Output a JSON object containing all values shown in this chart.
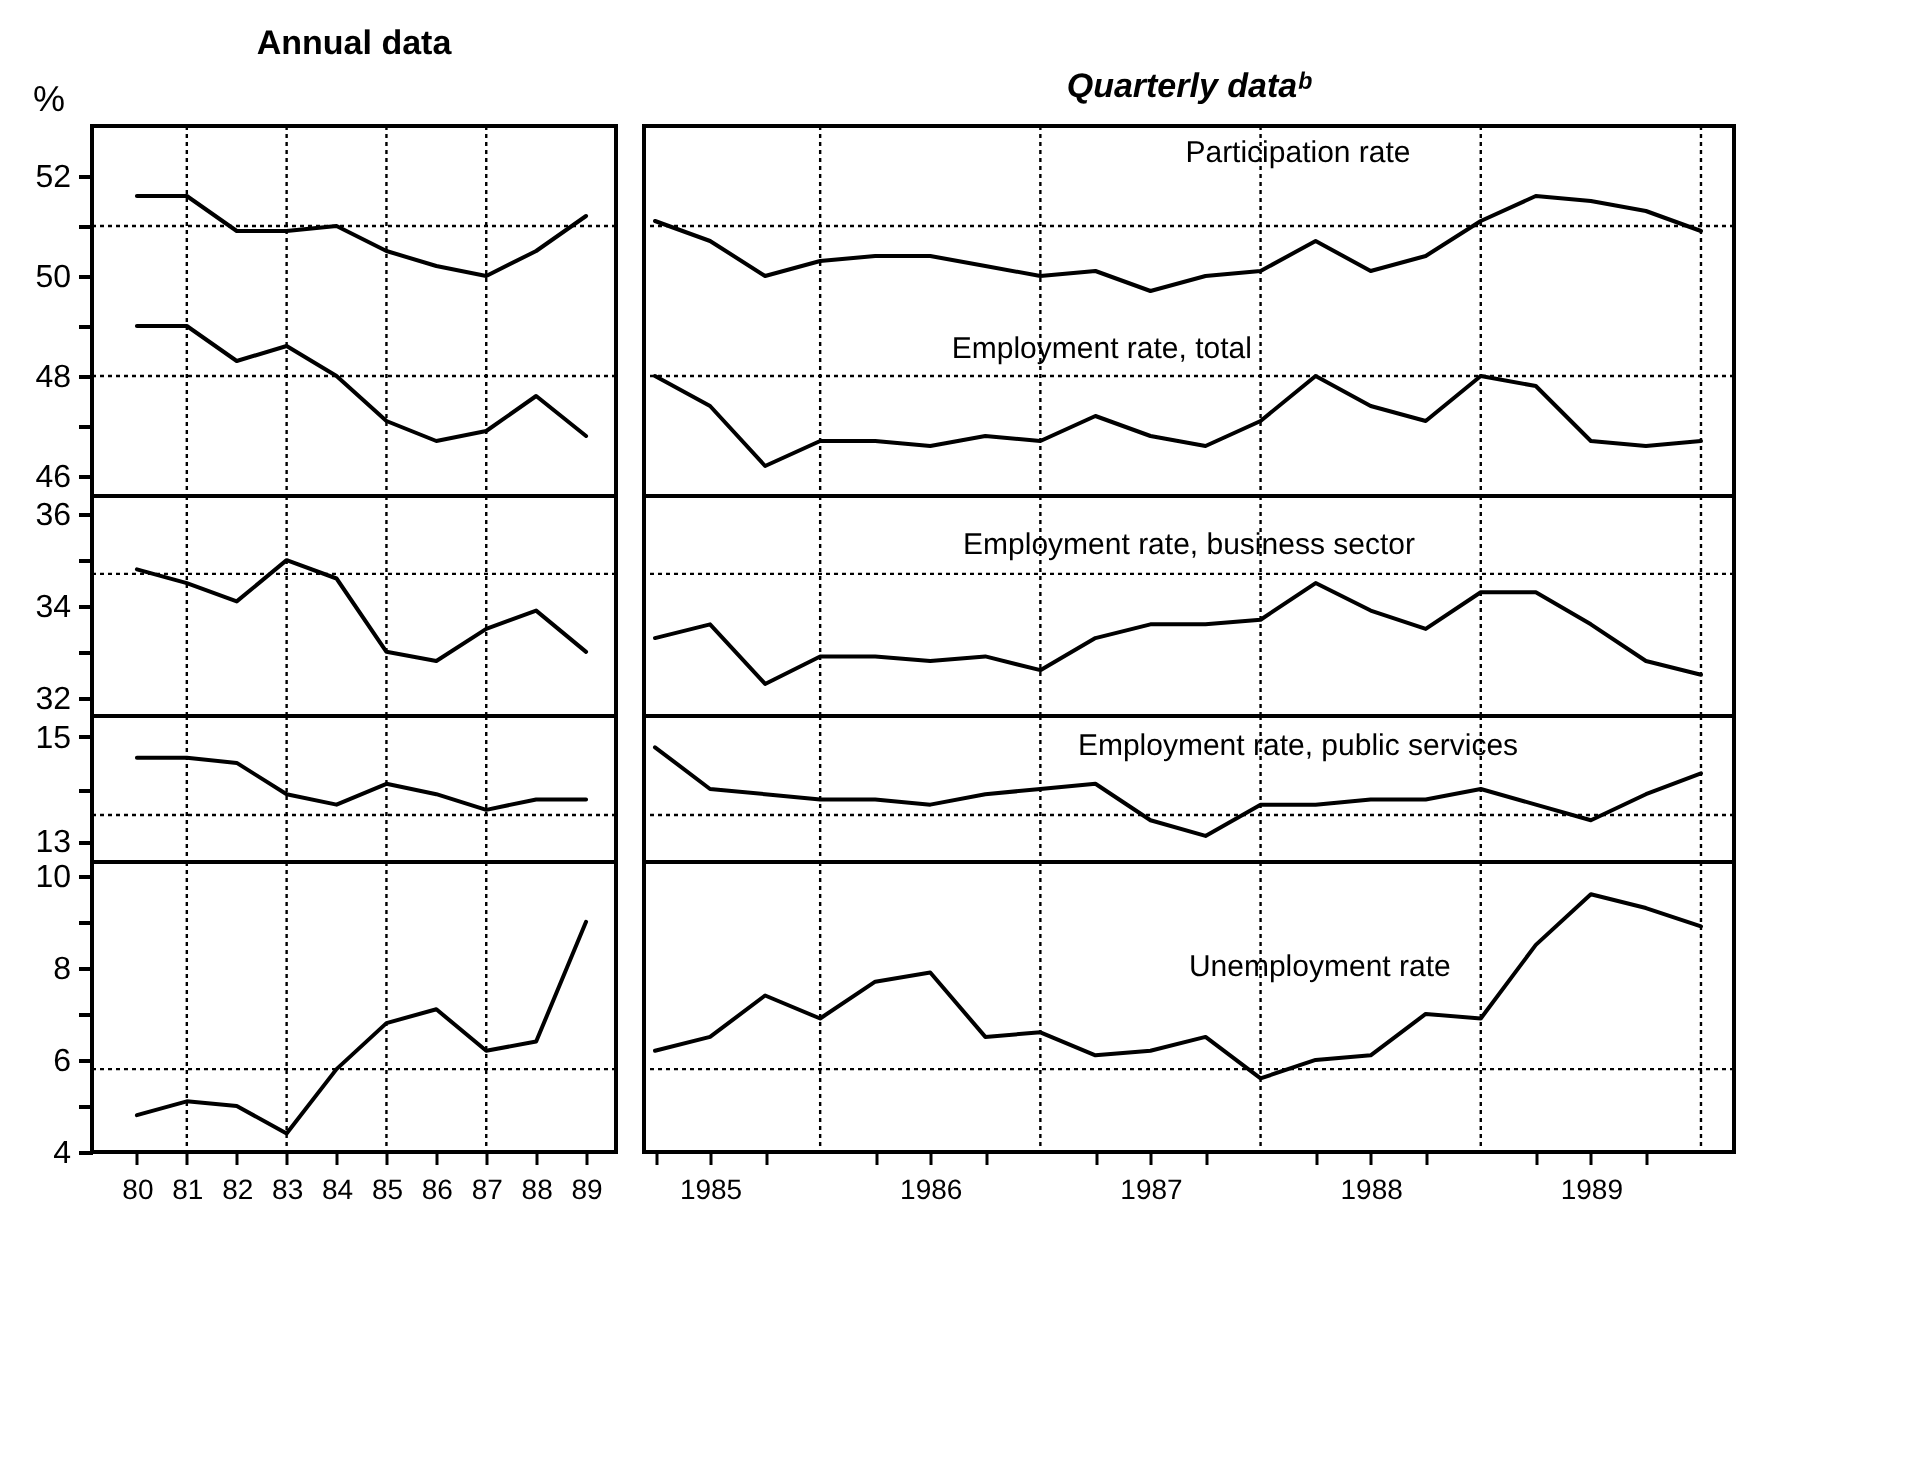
{
  "chart_data": [
    {
      "type": "line",
      "title": "Annual data",
      "ylabel": "%",
      "x": [
        1980,
        1981,
        1982,
        1983,
        1984,
        1985,
        1986,
        1987,
        1988,
        1989
      ],
      "xlim": [
        1979.1,
        1989.6
      ],
      "ylim": [
        45.6,
        53
      ],
      "yticks": [
        46,
        {
          "value": 47,
          "label": null
        },
        48,
        {
          "value": 49,
          "label": null
        },
        50,
        {
          "value": 51,
          "label": null
        },
        52
      ],
      "tick_labels": "y",
      "series": [
        {
          "color": "#000000",
          "values": [
            51.6,
            51.6,
            50.9,
            50.9,
            51.0,
            50.5,
            50.2,
            50.0,
            50.5,
            51.2
          ]
        },
        {
          "color": "#000000",
          "values": [
            49.0,
            49.0,
            48.3,
            48.6,
            48.0,
            47.1,
            46.7,
            46.9,
            47.6,
            46.8
          ]
        }
      ],
      "ref_lines": [
        {
          "axis": "y",
          "value": 51,
          "color": "#000000",
          "line_style": "dotted"
        },
        {
          "axis": "y",
          "value": 48,
          "color": "#000000",
          "line_style": "dotted"
        },
        {
          "axis": "x",
          "value": 1981,
          "color": "#000000",
          "line_style": "dotted"
        },
        {
          "axis": "x",
          "value": 1983,
          "color": "#000000",
          "line_style": "dotted"
        },
        {
          "axis": "x",
          "value": 1985,
          "color": "#000000",
          "line_style": "dotted"
        },
        {
          "axis": "x",
          "value": 1987,
          "color": "#000000",
          "line_style": "dotted"
        }
      ]
    },
    {
      "type": "line",
      "title": "Quarterly dataᵇ",
      "x": [
        1985.25,
        1985.5,
        1985.75,
        1986,
        1986.25,
        1986.5,
        1986.75,
        1987,
        1987.25,
        1987.5,
        1987.75,
        1988,
        1988.25,
        1988.5,
        1988.75,
        1989,
        1989.25,
        1989.5,
        1989.75,
        1990
      ],
      "xlim": [
        1985.2,
        1990.15
      ],
      "ylim": [
        45.6,
        53
      ],
      "tick_labels": false,
      "series": [
        {
          "name": "Participation rate",
          "color": "#000000",
          "values": [
            51.1,
            50.7,
            50.0,
            50.3,
            50.4,
            50.4,
            50.2,
            50.0,
            50.1,
            49.7,
            50.0,
            50.1,
            50.7,
            50.1,
            50.4,
            51.1,
            51.6,
            51.5,
            51.3,
            50.9
          ]
        },
        {
          "name": "Employment rate, total",
          "color": "#000000",
          "values": [
            48.0,
            47.4,
            46.2,
            46.7,
            46.7,
            46.6,
            46.8,
            46.7,
            47.2,
            46.8,
            46.6,
            47.1,
            48.0,
            47.4,
            47.1,
            48.0,
            47.8,
            46.7,
            46.6,
            46.7
          ]
        }
      ],
      "ref_lines": [
        {
          "axis": "y",
          "value": 51,
          "color": "#000000",
          "line_style": "dotted"
        },
        {
          "axis": "y",
          "value": 48,
          "color": "#000000",
          "line_style": "dotted"
        },
        {
          "axis": "x",
          "value": 1986,
          "color": "#000000",
          "line_style": "dotted"
        },
        {
          "axis": "x",
          "value": 1987,
          "color": "#000000",
          "line_style": "dotted"
        },
        {
          "axis": "x",
          "value": 1988,
          "color": "#000000",
          "line_style": "dotted"
        },
        {
          "axis": "x",
          "value": 1989,
          "color": "#000000",
          "line_style": "dotted"
        },
        {
          "axis": "x",
          "value": 1990,
          "color": "#000000",
          "line_style": "dotted"
        }
      ]
    },
    {
      "type": "line",
      "x": [
        1980,
        1981,
        1982,
        1983,
        1984,
        1985,
        1986,
        1987,
        1988,
        1989
      ],
      "xlim": [
        1979.1,
        1989.6
      ],
      "ylim": [
        31.6,
        36.4
      ],
      "yticks": [
        32,
        {
          "value": 33,
          "label": null
        },
        34,
        {
          "value": 35,
          "label": null
        },
        36
      ],
      "tick_labels": "y",
      "series": [
        {
          "color": "#000000",
          "values": [
            34.8,
            34.5,
            34.1,
            35.0,
            34.6,
            33.0,
            32.8,
            33.5,
            33.9,
            33.0
          ]
        }
      ],
      "ref_lines": [
        {
          "axis": "y",
          "value": 34.7,
          "color": "#000000",
          "line_style": "dotted"
        },
        {
          "axis": "x",
          "value": 1981,
          "color": "#000000",
          "line_style": "dotted"
        },
        {
          "axis": "x",
          "value": 1983,
          "color": "#000000",
          "line_style": "dotted"
        },
        {
          "axis": "x",
          "value": 1985,
          "color": "#000000",
          "line_style": "dotted"
        },
        {
          "axis": "x",
          "value": 1987,
          "color": "#000000",
          "line_style": "dotted"
        }
      ]
    },
    {
      "type": "line",
      "x": [
        1985.25,
        1985.5,
        1985.75,
        1986,
        1986.25,
        1986.5,
        1986.75,
        1987,
        1987.25,
        1987.5,
        1987.75,
        1988,
        1988.25,
        1988.5,
        1988.75,
        1989,
        1989.25,
        1989.5,
        1989.75,
        1990
      ],
      "xlim": [
        1985.2,
        1990.15
      ],
      "ylim": [
        31.6,
        36.4
      ],
      "tick_labels": false,
      "series": [
        {
          "name": "Employment rate, business sector",
          "color": "#000000",
          "values": [
            33.3,
            33.6,
            32.3,
            32.9,
            32.9,
            32.8,
            32.9,
            32.6,
            33.3,
            33.6,
            33.6,
            33.7,
            34.5,
            33.9,
            33.5,
            34.3,
            34.3,
            33.6,
            32.8,
            32.5
          ]
        }
      ],
      "ref_lines": [
        {
          "axis": "y",
          "value": 34.7,
          "color": "#000000",
          "line_style": "dotted"
        },
        {
          "axis": "x",
          "value": 1986,
          "color": "#000000",
          "line_style": "dotted"
        },
        {
          "axis": "x",
          "value": 1987,
          "color": "#000000",
          "line_style": "dotted"
        },
        {
          "axis": "x",
          "value": 1988,
          "color": "#000000",
          "line_style": "dotted"
        },
        {
          "axis": "x",
          "value": 1989,
          "color": "#000000",
          "line_style": "dotted"
        },
        {
          "axis": "x",
          "value": 1990,
          "color": "#000000",
          "line_style": "dotted"
        }
      ]
    },
    {
      "type": "line",
      "x": [
        1980,
        1981,
        1982,
        1983,
        1984,
        1985,
        1986,
        1987,
        1988,
        1989
      ],
      "xlim": [
        1979.1,
        1989.6
      ],
      "ylim": [
        12.6,
        15.4
      ],
      "yticks": [
        13,
        {
          "value": 14,
          "label": null
        },
        15
      ],
      "tick_labels": "y",
      "series": [
        {
          "color": "#000000",
          "values": [
            14.6,
            14.6,
            14.5,
            13.9,
            13.7,
            14.1,
            13.9,
            13.6,
            13.8,
            13.8
          ]
        }
      ],
      "ref_lines": [
        {
          "axis": "y",
          "value": 13.5,
          "color": "#000000",
          "line_style": "dotted"
        },
        {
          "axis": "x",
          "value": 1981,
          "color": "#000000",
          "line_style": "dotted"
        },
        {
          "axis": "x",
          "value": 1983,
          "color": "#000000",
          "line_style": "dotted"
        },
        {
          "axis": "x",
          "value": 1985,
          "color": "#000000",
          "line_style": "dotted"
        },
        {
          "axis": "x",
          "value": 1987,
          "color": "#000000",
          "line_style": "dotted"
        }
      ]
    },
    {
      "type": "line",
      "x": [
        1985.25,
        1985.5,
        1985.75,
        1986,
        1986.25,
        1986.5,
        1986.75,
        1987,
        1987.25,
        1987.5,
        1987.75,
        1988,
        1988.25,
        1988.5,
        1988.75,
        1989,
        1989.25,
        1989.5,
        1989.75,
        1990
      ],
      "xlim": [
        1985.2,
        1990.15
      ],
      "ylim": [
        12.6,
        15.4
      ],
      "tick_labels": false,
      "series": [
        {
          "name": "Employment rate, public services",
          "color": "#000000",
          "values": [
            14.8,
            14.0,
            13.9,
            13.8,
            13.8,
            13.7,
            13.9,
            14.0,
            14.1,
            13.4,
            13.1,
            13.7,
            13.7,
            13.8,
            13.8,
            14.0,
            13.7,
            13.4,
            13.9,
            14.3
          ]
        }
      ],
      "ref_lines": [
        {
          "axis": "y",
          "value": 13.5,
          "color": "#000000",
          "line_style": "dotted"
        },
        {
          "axis": "x",
          "value": 1986,
          "color": "#000000",
          "line_style": "dotted"
        },
        {
          "axis": "x",
          "value": 1987,
          "color": "#000000",
          "line_style": "dotted"
        },
        {
          "axis": "x",
          "value": 1988,
          "color": "#000000",
          "line_style": "dotted"
        },
        {
          "axis": "x",
          "value": 1989,
          "color": "#000000",
          "line_style": "dotted"
        },
        {
          "axis": "x",
          "value": 1990,
          "color": "#000000",
          "line_style": "dotted"
        }
      ]
    },
    {
      "type": "line",
      "x": [
        1980,
        1981,
        1982,
        1983,
        1984,
        1985,
        1986,
        1987,
        1988,
        1989
      ],
      "xlim": [
        1979.1,
        1989.6
      ],
      "ylim": [
        4,
        10.3
      ],
      "yticks": [
        4,
        {
          "value": 5,
          "label": null
        },
        6,
        {
          "value": 7,
          "label": null
        },
        8,
        {
          "value": 9,
          "label": null
        },
        10
      ],
      "xticks": [
        {
          "value": 1980,
          "label": "80"
        },
        {
          "value": 1981,
          "label": "81"
        },
        {
          "value": 1982,
          "label": "82"
        },
        {
          "value": 1983,
          "label": "83"
        },
        {
          "value": 1984,
          "label": "84"
        },
        {
          "value": 1985,
          "label": "85"
        },
        {
          "value": 1986,
          "label": "86"
        },
        {
          "value": 1987,
          "label": "87"
        },
        {
          "value": 1988,
          "label": "88"
        },
        {
          "value": 1989,
          "label": "89"
        }
      ],
      "series": [
        {
          "color": "#000000",
          "values": [
            4.8,
            5.1,
            5.0,
            4.4,
            5.8,
            6.8,
            7.1,
            6.2,
            6.4,
            9.0
          ]
        }
      ],
      "ref_lines": [
        {
          "axis": "y",
          "value": 5.8,
          "color": "#000000",
          "line_style": "dotted"
        },
        {
          "axis": "x",
          "value": 1981,
          "color": "#000000",
          "line_style": "dotted"
        },
        {
          "axis": "x",
          "value": 1983,
          "color": "#000000",
          "line_style": "dotted"
        },
        {
          "axis": "x",
          "value": 1985,
          "color": "#000000",
          "line_style": "dotted"
        },
        {
          "axis": "x",
          "value": 1987,
          "color": "#000000",
          "line_style": "dotted"
        }
      ]
    },
    {
      "type": "line",
      "x": [
        1985.25,
        1985.5,
        1985.75,
        1986,
        1986.25,
        1986.5,
        1986.75,
        1987,
        1987.25,
        1987.5,
        1987.75,
        1988,
        1988.25,
        1988.5,
        1988.75,
        1989,
        1989.25,
        1989.5,
        1989.75,
        1990
      ],
      "xlim": [
        1985.2,
        1990.15
      ],
      "ylim": [
        4,
        10.3
      ],
      "tick_labels": "x",
      "xticks": [
        {
          "value": 1985.25,
          "label": null
        },
        {
          "value": 1985.5,
          "label": "1985"
        },
        {
          "value": 1985.75,
          "label": null
        },
        {
          "value": 1986.25,
          "label": null
        },
        {
          "value": 1986.5,
          "label": "1986"
        },
        {
          "value": 1986.75,
          "label": null
        },
        {
          "value": 1987.25,
          "label": null
        },
        {
          "value": 1987.5,
          "label": "1987"
        },
        {
          "value": 1987.75,
          "label": null
        },
        {
          "value": 1988.25,
          "label": null
        },
        {
          "value": 1988.5,
          "label": "1988"
        },
        {
          "value": 1988.75,
          "label": null
        },
        {
          "value": 1989.25,
          "label": null
        },
        {
          "value": 1989.5,
          "label": "1989"
        },
        {
          "value": 1989.75,
          "label": null
        }
      ],
      "series": [
        {
          "name": "Unemployment rate",
          "color": "#000000",
          "values": [
            6.2,
            6.5,
            7.4,
            6.9,
            7.7,
            7.9,
            6.5,
            6.6,
            6.1,
            6.2,
            6.5,
            5.6,
            6.0,
            6.1,
            7.0,
            6.9,
            8.5,
            9.6,
            9.3,
            8.9
          ]
        }
      ],
      "ref_lines": [
        {
          "axis": "y",
          "value": 5.8,
          "color": "#000000",
          "line_style": "dotted"
        },
        {
          "axis": "x",
          "value": 1986,
          "color": "#000000",
          "line_style": "dotted"
        },
        {
          "axis": "x",
          "value": 1987,
          "color": "#000000",
          "line_style": "dotted"
        },
        {
          "axis": "x",
          "value": 1988,
          "color": "#000000",
          "line_style": "dotted"
        },
        {
          "axis": "x",
          "value": 1989,
          "color": "#000000",
          "line_style": "dotted"
        },
        {
          "axis": "x",
          "value": 1990,
          "color": "#000000",
          "line_style": "dotted"
        }
      ]
    }
  ]
}
